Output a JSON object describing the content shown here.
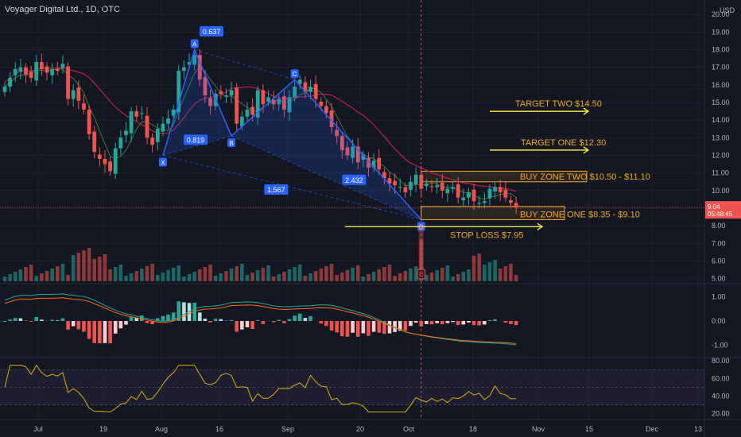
{
  "header": {
    "symbol_line": "Voyager Digital Ltd., 1D, OTC",
    "currency": "USD"
  },
  "chart_data": {
    "type": "candlestick",
    "symbol": "Voyager Digital Ltd.",
    "interval": "1D",
    "exchange": "OTC",
    "price_axis": {
      "ticks": [
        "5.00",
        "6.00",
        "7.00",
        "8.00",
        "9.00",
        "10.00",
        "11.00",
        "12.00",
        "13.00",
        "14.00",
        "15.00",
        "16.00",
        "17.00",
        "18.00",
        "19.00",
        "20.00"
      ],
      "range": [
        4.85,
        20.1
      ]
    },
    "time_axis": {
      "ticks": [
        "Jul",
        "19",
        "Aug",
        "16",
        "Sep",
        "20",
        "Oct",
        "18",
        "Nov",
        "15",
        "Dec",
        "13"
      ]
    },
    "last_price": {
      "value": "9.04",
      "countdown": "05:48:45",
      "price": 9.04
    },
    "close_series": [
      15.9,
      16.4,
      16.9,
      17.0,
      16.6,
      16.4,
      17.3,
      16.9,
      16.7,
      16.9,
      16.8,
      17.2,
      15.2,
      15.7,
      15.1,
      14.6,
      13.2,
      12.2,
      11.8,
      11.5,
      11.1,
      12.4,
      13.0,
      13.4,
      14.5,
      14.2,
      14.4,
      13.0,
      12.6,
      13.5,
      13.8,
      14.1,
      14.6,
      16.8,
      17.0,
      17.3,
      17.7,
      16.3,
      15.4,
      14.8,
      15.5,
      15.5,
      15.4,
      15.7,
      13.8,
      14.2,
      14.6,
      14.3,
      15.7,
      14.9,
      15.3,
      14.9,
      15.2,
      14.6,
      15.3,
      15.9,
      16.3,
      15.6,
      15.9,
      15.2,
      14.8,
      14.4,
      13.6,
      13.1,
      12.3,
      12.0,
      12.5,
      11.6,
      12.0,
      11.3,
      11.7,
      11.2,
      10.7,
      10.4,
      10.3,
      10.2,
      9.9,
      10.5,
      10.9,
      10.1,
      10.4,
      10.2,
      10.3,
      10.0,
      10.1,
      10.2,
      9.6,
      9.6,
      9.9,
      9.4,
      9.3,
      9.4,
      10.1,
      10.2,
      9.9,
      9.6,
      9.3,
      9.04
    ],
    "harmonic_pattern": {
      "points": [
        {
          "label": "X",
          "price": 12.0
        },
        {
          "label": "A",
          "price": 18.0
        },
        {
          "label": "B",
          "price": 13.1
        },
        {
          "label": "C",
          "price": 16.3
        },
        {
          "label": "D",
          "price": 8.35
        }
      ],
      "ratios": [
        "0.637",
        "0.819",
        "1.567",
        "2.432"
      ]
    },
    "annotations": {
      "target_two": "TARGET TWO $14.50",
      "target_one": "TARGET ONE $12.30",
      "buy_zone_two": "BUY ZONE TWO $10.50 - $11.10",
      "buy_zone_one": "BUY ZONE ONE $8.35 - $9.10",
      "stop_loss": "STOP LOSS $7.95",
      "earnings_marker": "E"
    },
    "levels": {
      "target_two": 14.5,
      "target_one": 12.3,
      "buy_zone_two": [
        10.5,
        11.1
      ],
      "buy_zone_one": [
        8.35,
        9.1
      ],
      "stop_loss": 7.95
    },
    "macd": {
      "ticks": [
        "1.00",
        "0.00",
        "-1.00"
      ],
      "range": [
        -1.45,
        1.45
      ]
    },
    "rsi": {
      "ticks": [
        "80.00",
        "60.00",
        "40.00",
        "20.00"
      ],
      "range": [
        17,
        82
      ],
      "band": [
        30,
        70
      ]
    },
    "colors": {
      "up": "#26a69a",
      "down": "#ef5350",
      "pattern": "#2962ff",
      "annotation": "#f5a623",
      "arrow": "#f4e542",
      "ma": "#c2185b"
    }
  }
}
